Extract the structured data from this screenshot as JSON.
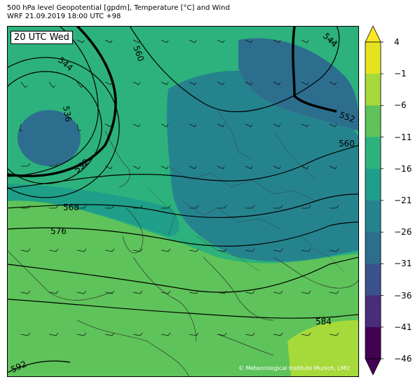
{
  "title_line1": "500 hPa level Geopotential [gpdm], Temperature [°C] and Wind",
  "title_line2": "WRF 21.09.2019 18:00 UTC +98",
  "valid_time": "20 UTC Wed",
  "credit": "© Meteorological Institute Munich, LMU",
  "colorbar": {
    "ticks": [
      "4",
      "−1",
      "−6",
      "−11",
      "−16",
      "−21",
      "−26",
      "−31",
      "−36",
      "−41",
      "−46"
    ],
    "colors": [
      "#e5e220",
      "#a6d93a",
      "#5ec35a",
      "#2db27d",
      "#1f9e89",
      "#25838e",
      "#2d6e8e",
      "#3a528b",
      "#472d7b",
      "#440154"
    ]
  },
  "contour_labels": [
    "544",
    "560",
    "544",
    "536",
    "552",
    "552",
    "560",
    "568",
    "576",
    "584",
    "592"
  ]
}
